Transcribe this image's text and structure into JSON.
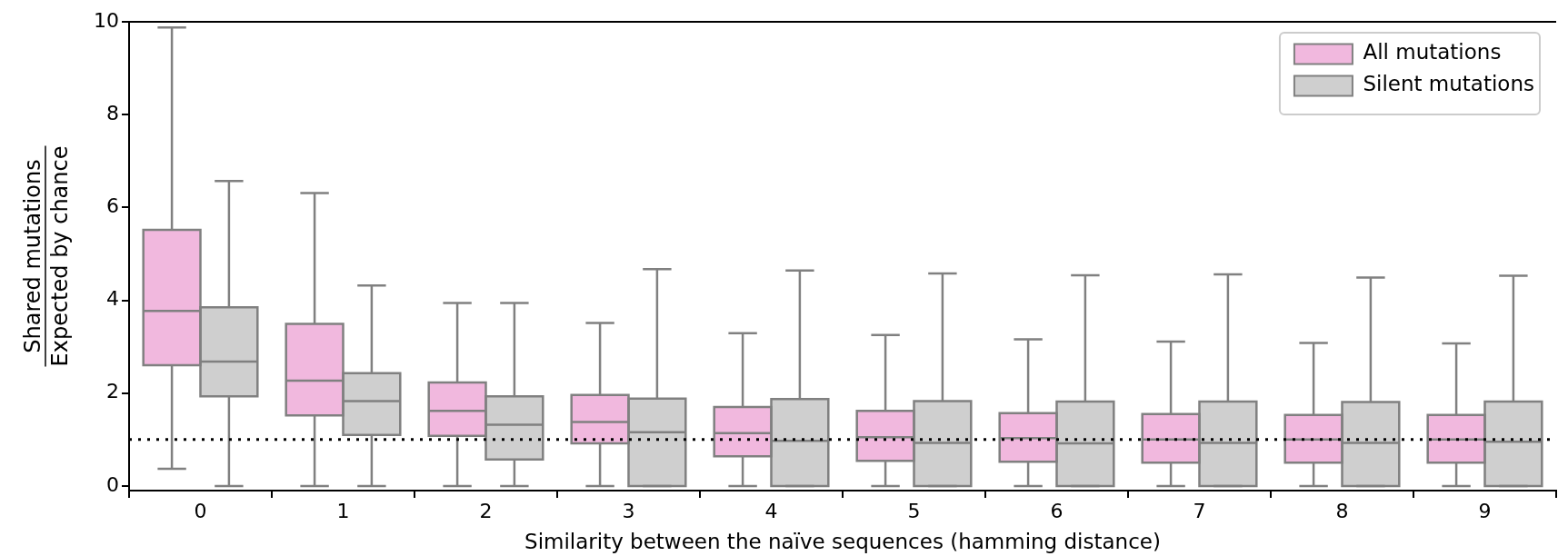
{
  "chart_data": {
    "type": "box",
    "xlabel": "Similarity between the naïve sequences (hamming distance)",
    "ylabel": "Shared mutations\nExpected by chance",
    "categories": [
      "0",
      "1",
      "2",
      "3",
      "4",
      "5",
      "6",
      "7",
      "8",
      "9"
    ],
    "series": [
      {
        "name": "All mutations",
        "color": "#f1b8de",
        "boxes": [
          {
            "low": 0.37,
            "q1": 2.6,
            "median": 3.77,
            "q3": 5.52,
            "high": 9.88
          },
          {
            "low": 0,
            "q1": 1.52,
            "median": 2.27,
            "q3": 3.49,
            "high": 6.31
          },
          {
            "low": 0,
            "q1": 1.08,
            "median": 1.62,
            "q3": 2.23,
            "high": 3.94
          },
          {
            "low": 0,
            "q1": 0.92,
            "median": 1.38,
            "q3": 1.96,
            "high": 3.51
          },
          {
            "low": 0,
            "q1": 0.64,
            "median": 1.14,
            "q3": 1.7,
            "high": 3.29
          },
          {
            "low": 0,
            "q1": 0.54,
            "median": 1.05,
            "q3": 1.62,
            "high": 3.25
          },
          {
            "low": 0,
            "q1": 0.52,
            "median": 1.03,
            "q3": 1.57,
            "high": 3.16
          },
          {
            "low": 0,
            "q1": 0.5,
            "median": 1.0,
            "q3": 1.55,
            "high": 3.11
          },
          {
            "low": 0,
            "q1": 0.5,
            "median": 1.0,
            "q3": 1.53,
            "high": 3.08
          },
          {
            "low": 0,
            "q1": 0.5,
            "median": 1.0,
            "q3": 1.53,
            "high": 3.07
          }
        ]
      },
      {
        "name": "Silent mutations",
        "color": "#cfcfcf",
        "boxes": [
          {
            "low": 0,
            "q1": 1.93,
            "median": 2.68,
            "q3": 3.85,
            "high": 6.57
          },
          {
            "low": 0,
            "q1": 1.1,
            "median": 1.83,
            "q3": 2.43,
            "high": 4.32
          },
          {
            "low": 0,
            "q1": 0.57,
            "median": 1.32,
            "q3": 1.93,
            "high": 3.94
          },
          {
            "low": 0,
            "q1": 0,
            "median": 1.16,
            "q3": 1.88,
            "high": 4.67
          },
          {
            "low": 0,
            "q1": 0,
            "median": 0.97,
            "q3": 1.87,
            "high": 4.64
          },
          {
            "low": 0,
            "q1": 0,
            "median": 0.93,
            "q3": 1.83,
            "high": 4.58
          },
          {
            "low": 0,
            "q1": 0,
            "median": 0.92,
            "q3": 1.82,
            "high": 4.54
          },
          {
            "low": 0,
            "q1": 0,
            "median": 0.93,
            "q3": 1.82,
            "high": 4.56
          },
          {
            "low": 0,
            "q1": 0,
            "median": 0.93,
            "q3": 1.81,
            "high": 4.49
          },
          {
            "low": 0,
            "q1": 0,
            "median": 0.95,
            "q3": 1.82,
            "high": 4.53
          }
        ]
      }
    ],
    "ylim": [
      -0.1,
      10
    ],
    "yticks": [
      0,
      2,
      4,
      6,
      8,
      10
    ],
    "ref_lines": [
      {
        "axis": "y",
        "value": 1,
        "color": "#000000",
        "line_style": "dotted"
      }
    ],
    "legend": "top right",
    "grid": false
  }
}
